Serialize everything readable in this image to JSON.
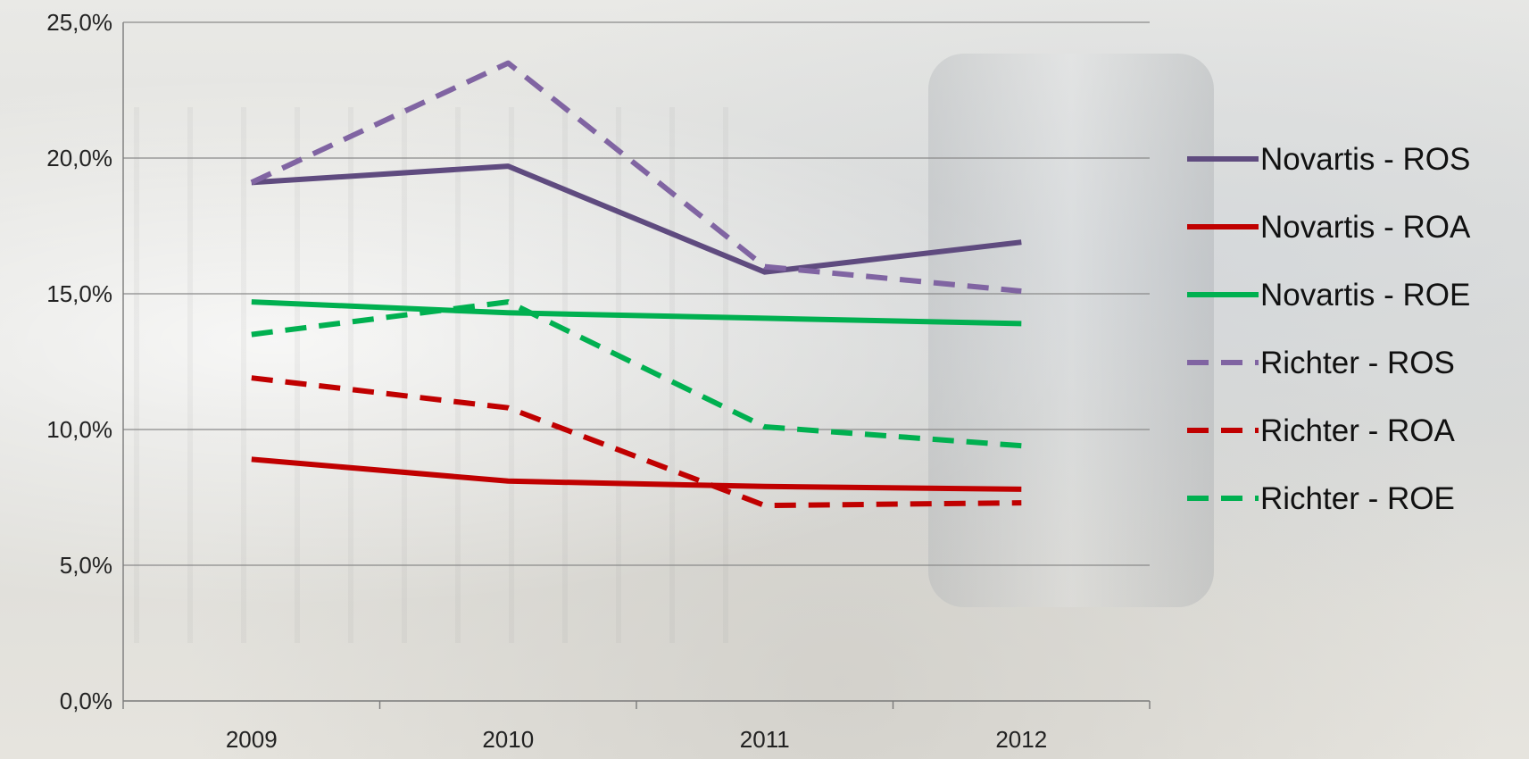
{
  "chart_data": {
    "type": "line",
    "title": "",
    "xlabel": "",
    "ylabel": "",
    "categories": [
      "2009",
      "2010",
      "2011",
      "2012"
    ],
    "ylim": [
      0,
      25
    ],
    "y_ticks": [
      0,
      5,
      10,
      15,
      20,
      25
    ],
    "y_tick_labels": [
      "0,0%",
      "5,0%",
      "10,0%",
      "15,0%",
      "20,0%",
      "25,0%"
    ],
    "grid": true,
    "legend_position": "right",
    "series": [
      {
        "name": "Novartis - ROS",
        "values": [
          19.1,
          19.7,
          15.8,
          16.9
        ],
        "color": "#5f4b7f",
        "dashed": false
      },
      {
        "name": "Novartis - ROA",
        "values": [
          8.9,
          8.1,
          7.9,
          7.8
        ],
        "color": "#c00000",
        "dashed": false
      },
      {
        "name": "Novartis - ROE",
        "values": [
          14.7,
          14.3,
          14.1,
          13.9
        ],
        "color": "#00b050",
        "dashed": false
      },
      {
        "name": "Richter - ROS",
        "values": [
          19.1,
          23.5,
          16.0,
          15.1
        ],
        "color": "#8064a2",
        "dashed": true
      },
      {
        "name": "Richter - ROA",
        "values": [
          11.9,
          10.8,
          7.2,
          7.3
        ],
        "color": "#c00000",
        "dashed": true
      },
      {
        "name": "Richter - ROE",
        "values": [
          13.5,
          14.7,
          10.1,
          9.4
        ],
        "color": "#00b050",
        "dashed": true
      }
    ]
  }
}
